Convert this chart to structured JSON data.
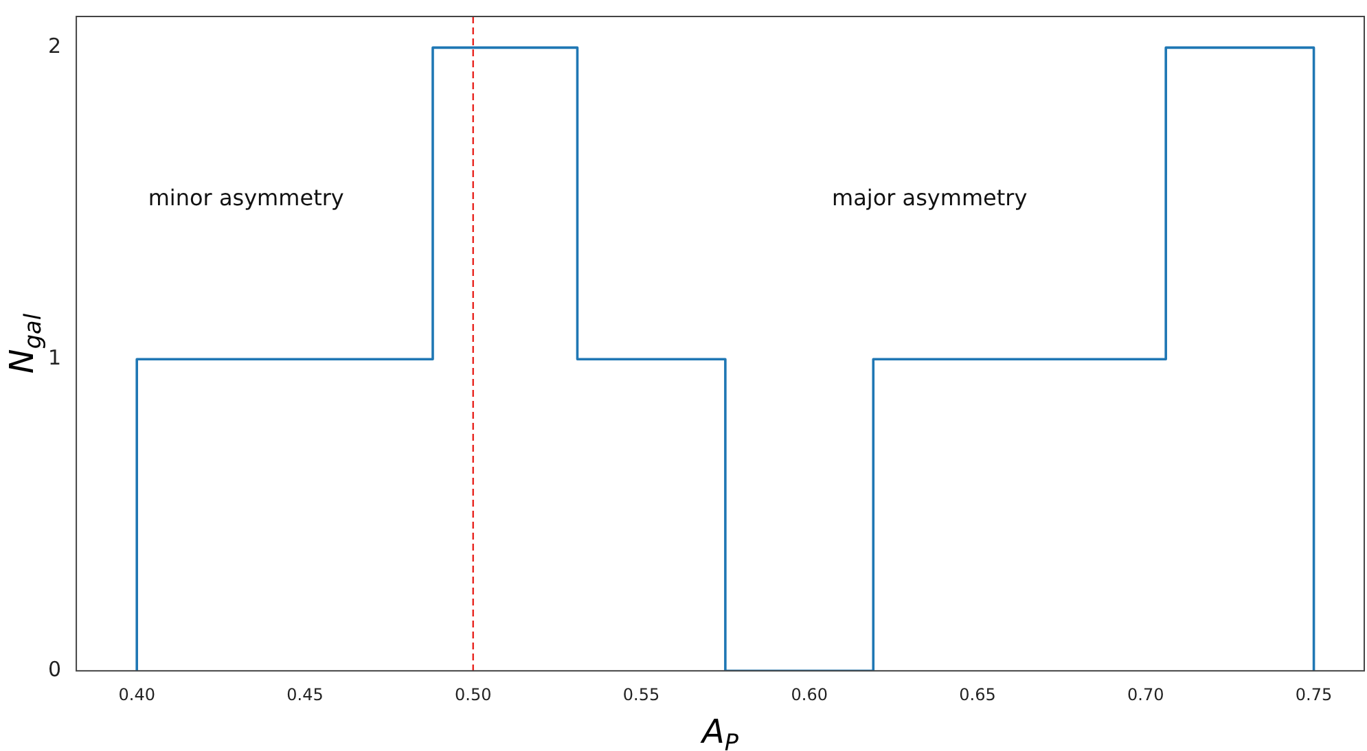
{
  "chart_data": {
    "type": "histogram",
    "xlabel": "A$_{P}$",
    "ylabel": "N$_{gal}$",
    "bins": [
      0.4,
      0.444,
      0.488,
      0.531,
      0.575,
      0.619,
      0.663,
      0.706,
      0.75
    ],
    "values": [
      1,
      1,
      2,
      1,
      0,
      1,
      1,
      2
    ],
    "color": "#1f77b4",
    "xlim": [
      0.382,
      0.765
    ],
    "ylim": [
      0,
      2.1
    ],
    "xticks": [
      {
        "value": 0.4,
        "label": "0.40"
      },
      {
        "value": 0.45,
        "label": "0.45"
      },
      {
        "value": 0.5,
        "label": "0.50"
      },
      {
        "value": 0.55,
        "label": "0.55"
      },
      {
        "value": 0.6,
        "label": "0.60"
      },
      {
        "value": 0.65,
        "label": "0.65"
      },
      {
        "value": 0.7,
        "label": "0.70"
      },
      {
        "value": 0.75,
        "label": "0.75"
      }
    ],
    "yticks": [
      0,
      1,
      2
    ],
    "grid": false,
    "legend": false,
    "ref_lines": [
      {
        "axis": "x",
        "value": 0.5,
        "color": "#e8231d",
        "line_style": "dashed"
      }
    ],
    "annotations": [
      "minor asymmetry",
      "major asymmetry"
    ]
  }
}
